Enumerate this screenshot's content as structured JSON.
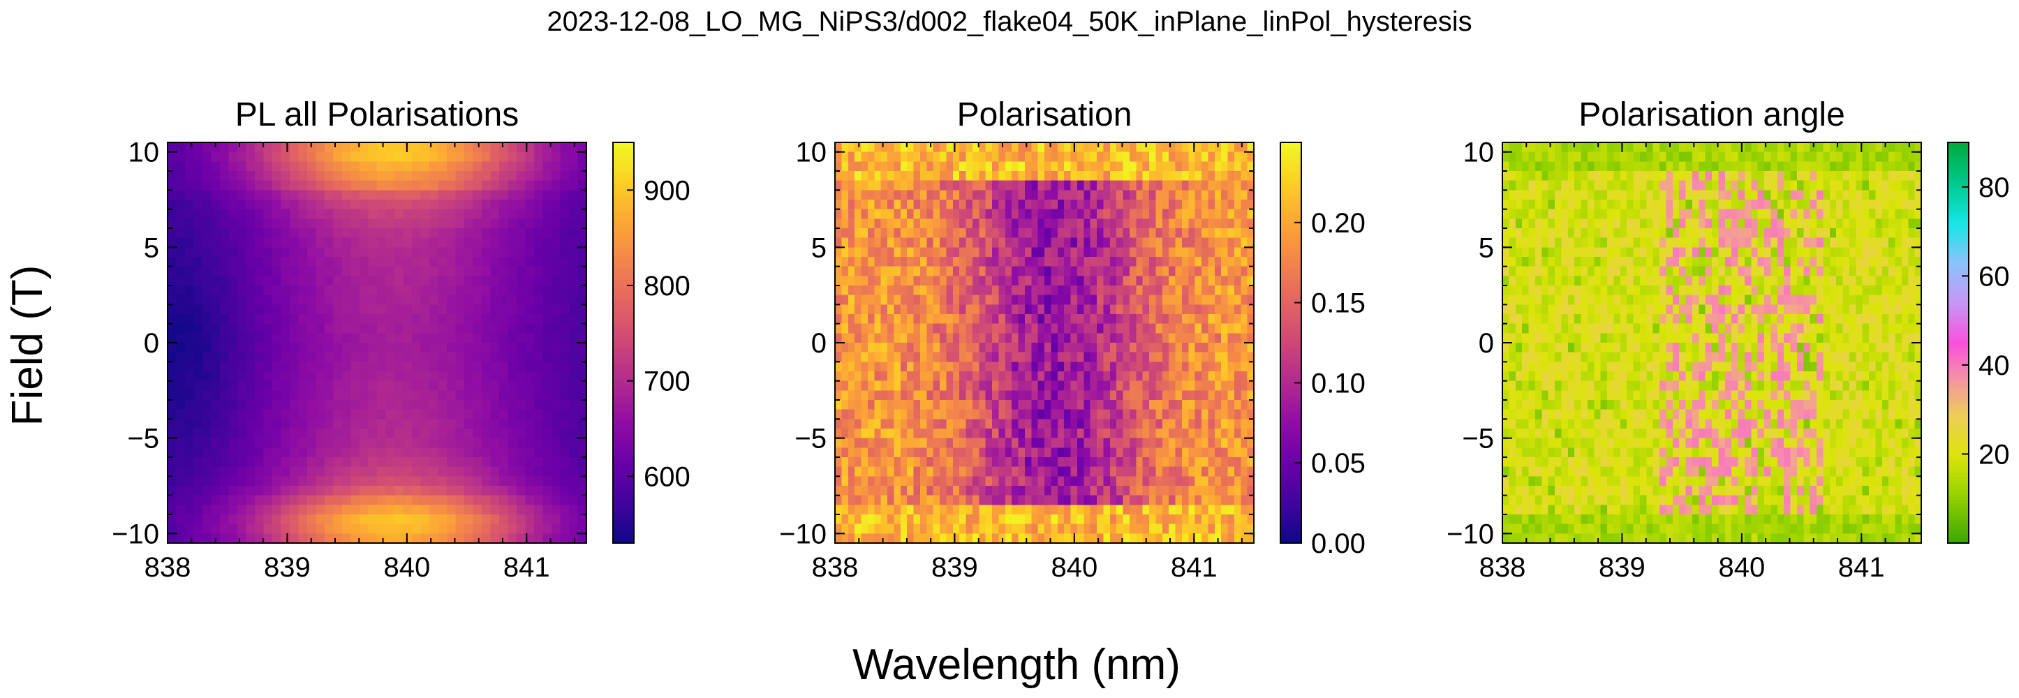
{
  "figure": {
    "suptitle": "2023-12-08_LO_MG_NiPS3/d002_flake04_50K_inPlane_linPol_hysteresis",
    "shared_xlabel": "Wavelength (nm)",
    "shared_ylabel": "Field (T)"
  },
  "chart_data": [
    {
      "type": "heatmap",
      "title": "PL all Polarisations",
      "xlabel": "Wavelength (nm)",
      "ylabel": "Field (T)",
      "xlim": [
        838.0,
        841.5
      ],
      "ylim": [
        -10.5,
        10.5
      ],
      "xticks": [
        838,
        839,
        840,
        841
      ],
      "xtick_labels": [
        "838",
        "839",
        "840",
        "841"
      ],
      "yticks": [
        -10,
        -5,
        0,
        5,
        10
      ],
      "ytick_labels": [
        "−10",
        "−5",
        "0",
        "5",
        "10"
      ],
      "colormap": "plasma",
      "colorbar": {
        "vmin": 530,
        "vmax": 950,
        "ticks": [
          600,
          700,
          800,
          900
        ],
        "tick_labels": [
          "600",
          "700",
          "800",
          "900"
        ]
      },
      "grid": false,
      "nx": 48,
      "ny": 42,
      "field_profile": {
        "field_T": [
          10,
          9.5,
          9,
          8.5,
          8,
          7.5,
          7,
          6,
          5,
          0,
          -5,
          -6,
          -7,
          -7.5,
          -8,
          -8.5,
          -9,
          -9.5,
          -10
        ],
        "intensity": [
          900,
          910,
          840,
          865,
          790,
          760,
          740,
          715,
          700,
          680,
          700,
          715,
          740,
          760,
          800,
          850,
          880,
          915,
          870
        ]
      },
      "peak_nm": 839.9,
      "left_edge_dip_nm": 838.2
    },
    {
      "type": "heatmap",
      "title": "Polarisation",
      "xlabel": "Wavelength (nm)",
      "ylabel": "Field (T)",
      "xlim": [
        838.0,
        841.5
      ],
      "ylim": [
        -10.5,
        10.5
      ],
      "xticks": [
        838,
        839,
        840,
        841
      ],
      "xtick_labels": [
        "838",
        "839",
        "840",
        "841"
      ],
      "yticks": [
        -10,
        -5,
        0,
        5,
        10
      ],
      "ytick_labels": [
        "−10",
        "−5",
        "0",
        "5",
        "10"
      ],
      "colormap": "plasma",
      "colorbar": {
        "vmin": 0.0,
        "vmax": 0.25,
        "ticks": [
          0.0,
          0.05,
          0.1,
          0.15,
          0.2
        ],
        "tick_labels": [
          "0.00",
          "0.05",
          "0.10",
          "0.15",
          "0.20"
        ]
      },
      "grid": false,
      "nx": 64,
      "ny": 42,
      "edge_value": 0.19,
      "center_value": 0.08,
      "center_nm": 839.85,
      "high_field_value": 0.21
    },
    {
      "type": "heatmap",
      "title": "Polarisation angle",
      "xlabel": "Wavelength (nm)",
      "ylabel": "Field (T)",
      "xlim": [
        838.0,
        841.5
      ],
      "ylim": [
        -10.5,
        10.5
      ],
      "xticks": [
        838,
        839,
        840,
        841
      ],
      "xtick_labels": [
        "838",
        "839",
        "840",
        "841"
      ],
      "yticks": [
        -10,
        -5,
        0,
        5,
        10
      ],
      "ytick_labels": [
        "−10",
        "−5",
        "0",
        "5",
        "10"
      ],
      "colormap": "cyclic",
      "colorbar": {
        "vmin": 0,
        "vmax": 90,
        "ticks": [
          20,
          40,
          60,
          80
        ],
        "tick_labels": [
          "20",
          "40",
          "60",
          "80"
        ]
      },
      "grid": false,
      "nx": 64,
      "ny": 42,
      "background_value": 20,
      "pink_band_value": 37,
      "pink_band_nm": [
        839.3,
        840.7
      ],
      "high_field_value": 8
    }
  ]
}
